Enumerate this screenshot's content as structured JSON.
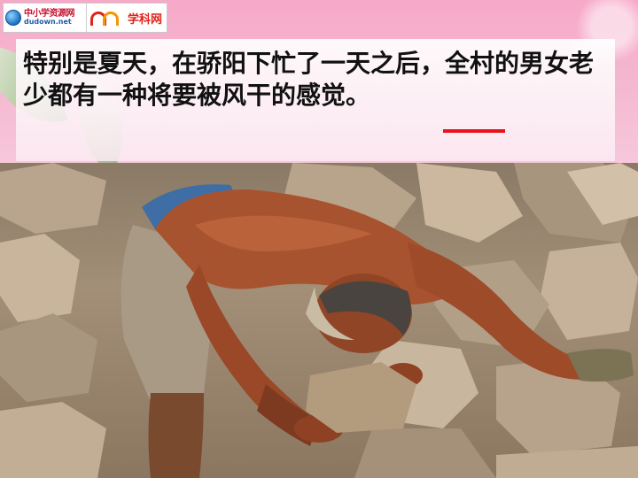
{
  "logos": {
    "site1_name": "中小学资源网",
    "site1_url": "dudown.net",
    "site2_name": "学科网"
  },
  "slide": {
    "text": "特别是夏天，在骄阳下忙了一天之后，全村的男女老少都有一种将要被风干的感觉。",
    "underline_color": "#e8141b"
  },
  "photo": {
    "subject": "man-lifting-rocks"
  }
}
